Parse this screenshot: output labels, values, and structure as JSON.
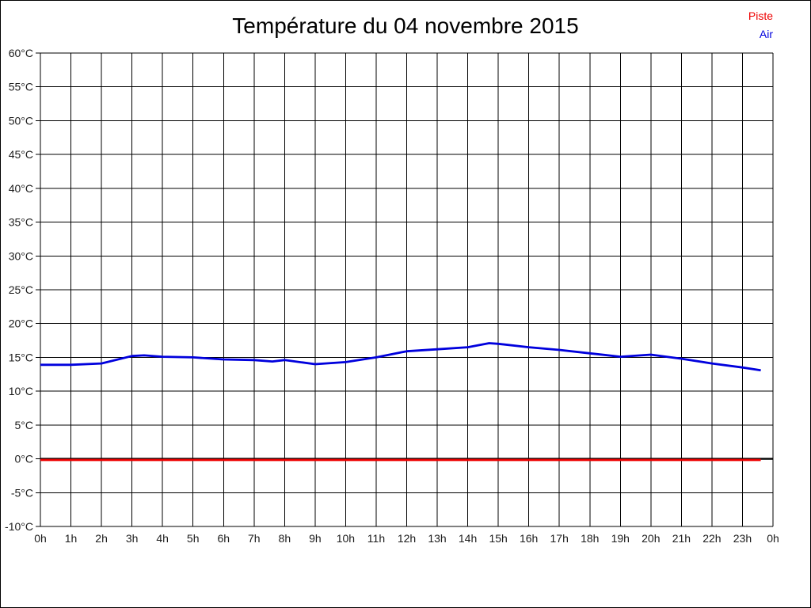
{
  "window": {
    "title": "Température du 04 novembre 2015"
  },
  "legend": {
    "items": [
      {
        "label": "Piste",
        "color": "#ee0000"
      },
      {
        "label": "Air",
        "color": "#0000dd"
      }
    ]
  },
  "chart_data": {
    "type": "line",
    "title": "Température du 04 novembre 2015",
    "xlabel": "",
    "ylabel": "",
    "x_unit": "h",
    "y_unit": "°C",
    "xlim": [
      0,
      24
    ],
    "ylim": [
      -10,
      60
    ],
    "y_tick_step": 5,
    "grid": true,
    "legend_position": "top-right",
    "x_tick_labels": [
      "0h",
      "1h",
      "2h",
      "3h",
      "4h",
      "5h",
      "6h",
      "7h",
      "8h",
      "9h",
      "10h",
      "11h",
      "12h",
      "13h",
      "14h",
      "15h",
      "16h",
      "17h",
      "18h",
      "19h",
      "20h",
      "21h",
      "22h",
      "23h",
      "0h"
    ],
    "y_tick_labels": [
      "60°C",
      "55°C",
      "50°C",
      "45°C",
      "40°C",
      "35°C",
      "30°C",
      "25°C",
      "20°C",
      "15°C",
      "10°C",
      "5°C",
      "0°C",
      "-5°C",
      "-10°C"
    ],
    "zero_line": {
      "value": 0,
      "color": "#000000"
    },
    "series": [
      {
        "name": "Piste",
        "color": "#ee0000",
        "points": [
          [
            0,
            0.0
          ],
          [
            23.6,
            0.0
          ]
        ]
      },
      {
        "name": "Air",
        "color": "#0000dd",
        "points": [
          [
            0,
            13.9
          ],
          [
            1,
            13.9
          ],
          [
            2,
            14.1
          ],
          [
            3,
            15.2
          ],
          [
            3.4,
            15.3
          ],
          [
            4,
            15.1
          ],
          [
            5,
            15.0
          ],
          [
            6,
            14.7
          ],
          [
            7,
            14.6
          ],
          [
            7.6,
            14.4
          ],
          [
            8,
            14.6
          ],
          [
            9,
            14.0
          ],
          [
            10,
            14.3
          ],
          [
            11,
            15.0
          ],
          [
            12,
            15.9
          ],
          [
            13,
            16.2
          ],
          [
            14,
            16.5
          ],
          [
            14.7,
            17.1
          ],
          [
            15,
            17.0
          ],
          [
            16,
            16.5
          ],
          [
            17,
            16.1
          ],
          [
            18,
            15.6
          ],
          [
            19,
            15.1
          ],
          [
            20,
            15.4
          ],
          [
            21,
            14.8
          ],
          [
            22,
            14.1
          ],
          [
            23,
            13.5
          ],
          [
            23.6,
            13.1
          ]
        ]
      }
    ]
  }
}
